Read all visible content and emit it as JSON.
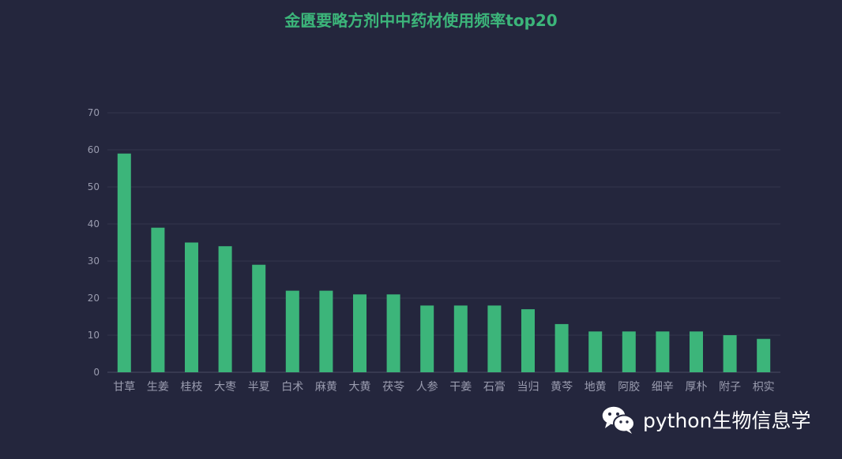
{
  "watermark": {
    "text": "python生物信息学",
    "icon": "wechat-icon"
  },
  "colors": {
    "background": "#24263d",
    "bar": "#3cb57a",
    "title": "#3cb57a",
    "axis_text": "#9a9caf",
    "grid": "#34364d"
  },
  "chart_data": {
    "type": "bar",
    "title": "金匮要略方剂中中药材使用频率top20",
    "xlabel": "",
    "ylabel": "",
    "ylim": [
      0,
      70
    ],
    "yticks": [
      0,
      10,
      20,
      30,
      40,
      50,
      60,
      70
    ],
    "grid": true,
    "legend": "none",
    "categories": [
      "甘草",
      "生姜",
      "桂枝",
      "大枣",
      "半夏",
      "白术",
      "麻黄",
      "大黄",
      "茯苓",
      "人参",
      "干姜",
      "石膏",
      "当归",
      "黄芩",
      "地黄",
      "阿胶",
      "细辛",
      "厚朴",
      "附子",
      "枳实"
    ],
    "values": [
      59,
      39,
      35,
      34,
      29,
      22,
      22,
      21,
      21,
      18,
      18,
      18,
      17,
      13,
      11,
      11,
      11,
      11,
      10,
      9
    ]
  }
}
